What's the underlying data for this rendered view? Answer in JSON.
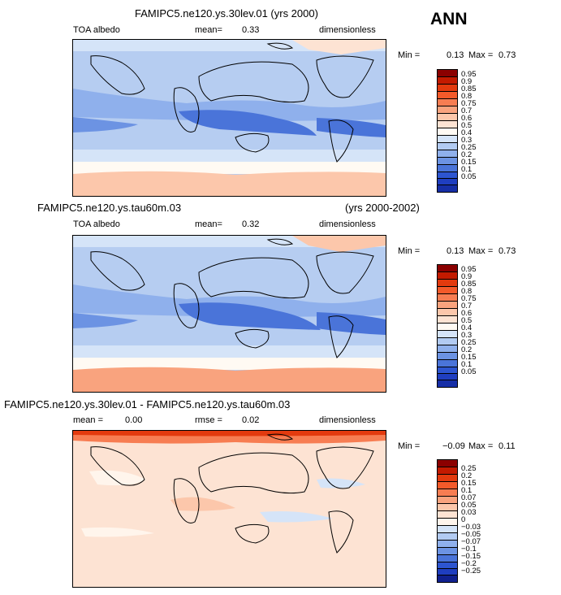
{
  "season": "ANN",
  "panels": [
    {
      "title": "FAMIPC5.ne120.ys.30lev.01 (yrs 2000)",
      "title_right": "",
      "variable": "TOA albedo",
      "mean_label": "mean=",
      "mean_value": "0.33",
      "units": "dimensionless",
      "min_label": "Min =",
      "min_value": "0.13",
      "max_label": "Max =",
      "max_value": "0.73"
    },
    {
      "title": "FAMIPC5.ne120.ys.tau60m.03",
      "title_right": "(yrs 2000-2002)",
      "variable": "TOA albedo",
      "mean_label": "mean=",
      "mean_value": "0.32",
      "units": "dimensionless",
      "min_label": "Min =",
      "min_value": "0.13",
      "max_label": "Max =",
      "max_value": "0.73"
    },
    {
      "title": "FAMIPC5.ne120.ys.30lev.01 - FAMIPC5.ne120.ys.tau60m.03",
      "title_right": "",
      "variable": "mean =",
      "mean_label": "",
      "mean_value": "0.00",
      "rmse_label": "rmse =",
      "rmse_value": "0.02",
      "units": "dimensionless",
      "min_label": "Min =",
      "min_value": "−0.09",
      "max_label": "Max =",
      "max_value": "0.11"
    }
  ],
  "colorbars": {
    "absolute": {
      "labels": [
        "0.95",
        "0.9",
        "0.85",
        "0.8",
        "0.75",
        "0.7",
        "0.6",
        "0.5",
        "0.4",
        "0.3",
        "0.25",
        "0.2",
        "0.15",
        "0.1",
        "0.05"
      ],
      "colors": [
        "#8b0000",
        "#c31a00",
        "#e33a0e",
        "#f45a2a",
        "#f77d52",
        "#f9a37e",
        "#fcc7ab",
        "#fde3d3",
        "#fffaf3",
        "#d5e4f8",
        "#b2cbf2",
        "#8fb0ec",
        "#6c93e3",
        "#4a74d9",
        "#2d55d0",
        "#1f3ec0",
        "#162ea6"
      ]
    },
    "difference": {
      "labels": [
        "0.25",
        "0.2",
        "0.15",
        "0.1",
        "0.07",
        "0.05",
        "0.03",
        "0",
        "−0.03",
        "−0.05",
        "−0.07",
        "−0.1",
        "−0.15",
        "−0.2",
        "−0.25"
      ],
      "colors": [
        "#8b0000",
        "#c31a00",
        "#e33a0e",
        "#f45a2a",
        "#f77d52",
        "#f9a37e",
        "#fcc7ab",
        "#fde3d3",
        "#fff5ec",
        "#d5e4f8",
        "#b2cbf2",
        "#8fb0ec",
        "#6c93e3",
        "#4a74d9",
        "#2d55d0",
        "#1f3ec0",
        "#10208e"
      ]
    }
  },
  "chart_data": [
    {
      "type": "heatmap",
      "title": "FAMIPC5.ne120.ys.30lev.01 (yrs 2000)",
      "variable": "TOA albedo",
      "units": "dimensionless",
      "mean": 0.33,
      "min": 0.13,
      "max": 0.73,
      "contour_levels": [
        0.05,
        0.1,
        0.15,
        0.2,
        0.25,
        0.3,
        0.4,
        0.5,
        0.6,
        0.7,
        0.75,
        0.8,
        0.85,
        0.9,
        0.95
      ]
    },
    {
      "type": "heatmap",
      "title": "FAMIPC5.ne120.ys.tau60m.03 (yrs 2000-2002)",
      "variable": "TOA albedo",
      "units": "dimensionless",
      "mean": 0.32,
      "min": 0.13,
      "max": 0.73,
      "contour_levels": [
        0.05,
        0.1,
        0.15,
        0.2,
        0.25,
        0.3,
        0.4,
        0.5,
        0.6,
        0.7,
        0.75,
        0.8,
        0.85,
        0.9,
        0.95
      ]
    },
    {
      "type": "heatmap",
      "title": "FAMIPC5.ne120.ys.30lev.01 - FAMIPC5.ne120.ys.tau60m.03",
      "units": "dimensionless",
      "mean": 0.0,
      "rmse": 0.02,
      "min": -0.09,
      "max": 0.11,
      "contour_levels": [
        -0.25,
        -0.2,
        -0.15,
        -0.1,
        -0.07,
        -0.05,
        -0.03,
        0,
        0.03,
        0.05,
        0.07,
        0.1,
        0.15,
        0.2,
        0.25
      ]
    }
  ]
}
